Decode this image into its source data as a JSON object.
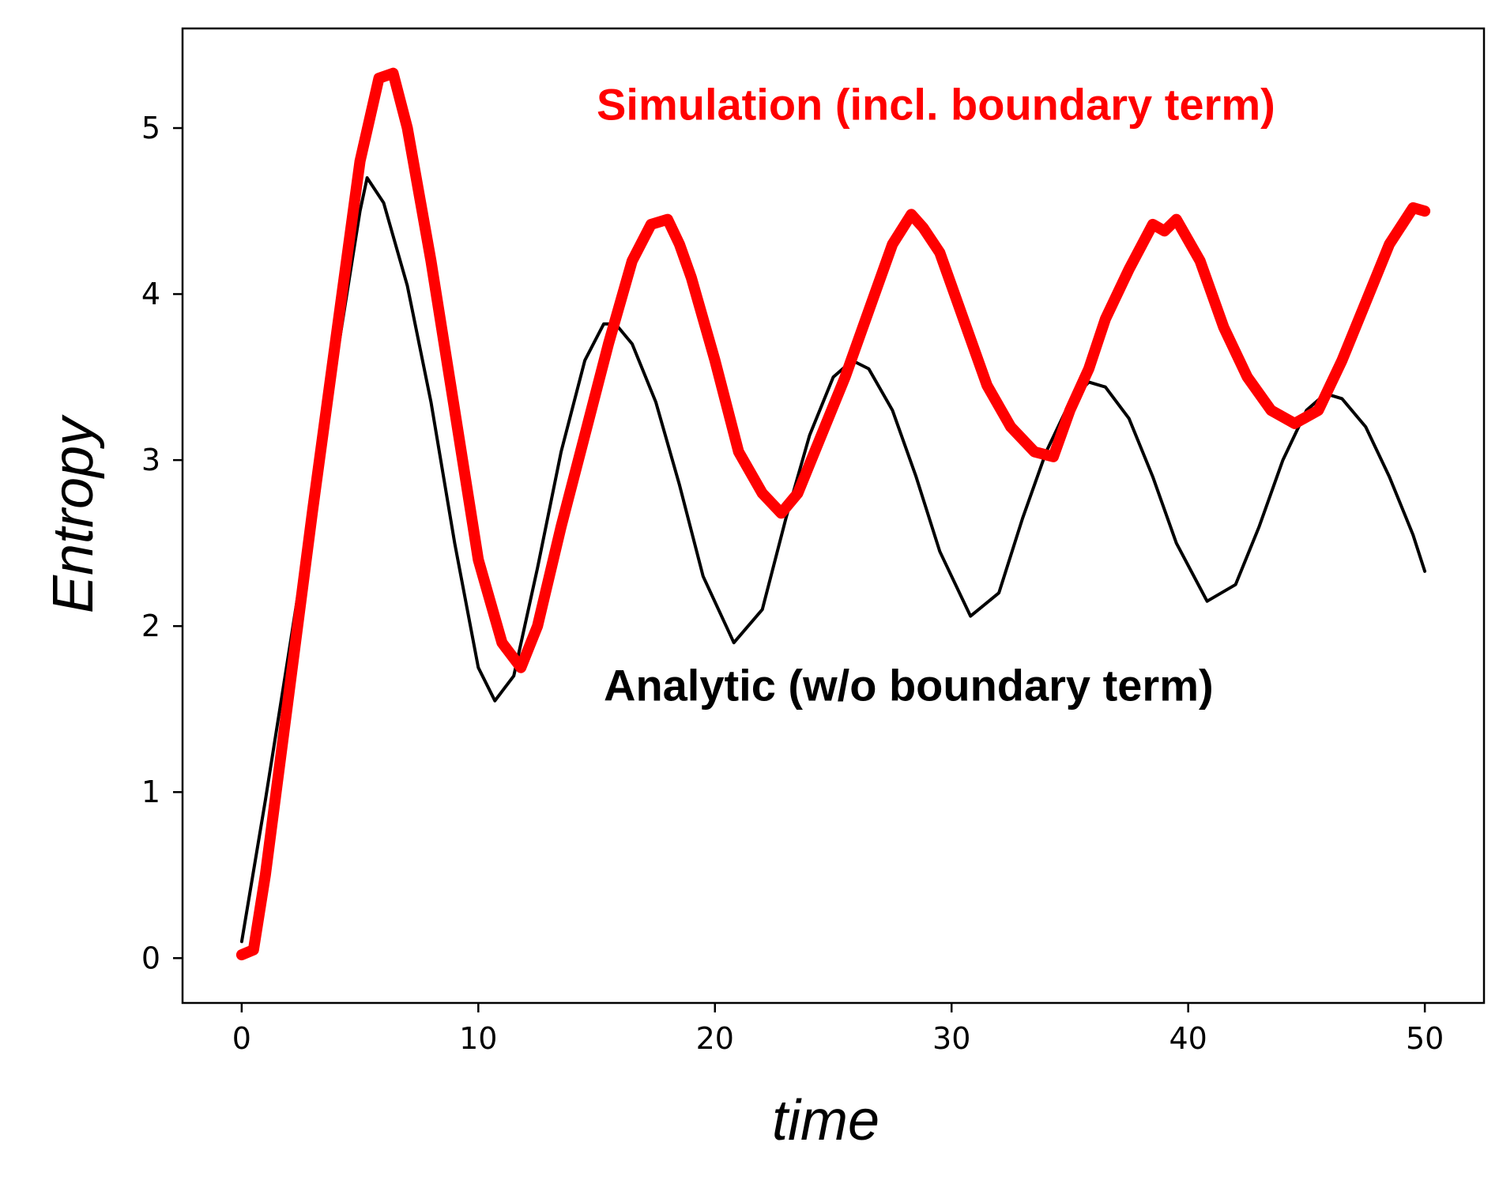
{
  "chart_data": {
    "type": "line",
    "xlabel": "time",
    "ylabel": "Entropy",
    "xlim": [
      -2.5,
      52.5
    ],
    "ylim": [
      -0.27,
      5.6
    ],
    "xticks": [
      0,
      10,
      20,
      30,
      40,
      50
    ],
    "yticks": [
      0,
      1,
      2,
      3,
      4,
      5
    ],
    "grid": false,
    "annotations": [
      {
        "text": "Simulation (incl. boundary term)",
        "color": "#ff0000",
        "x": 15,
        "y": 5.05,
        "series": "simulation"
      },
      {
        "text": "Analytic (w/o boundary term)",
        "color": "#000000",
        "x": 15.3,
        "y": 1.55,
        "series": "analytic"
      }
    ],
    "series": [
      {
        "id": "analytic",
        "color": "#000000",
        "x": [
          0,
          1,
          2,
          3,
          4,
          5,
          5.3,
          6,
          7,
          8,
          9,
          10,
          10.7,
          11.5,
          12.5,
          13.5,
          14.5,
          15.3,
          15.8,
          16.5,
          17.5,
          18.5,
          19.5,
          20.8,
          22,
          23,
          24,
          25,
          25.8,
          26.5,
          27.5,
          28.5,
          29.5,
          30.8,
          32,
          33,
          34,
          35,
          35.8,
          36.5,
          37.5,
          38.5,
          39.5,
          40.8,
          42,
          43,
          44,
          45,
          45.8,
          46.5,
          47.5,
          48.5,
          49.5,
          50
        ],
        "y": [
          0.1,
          0.95,
          1.85,
          2.75,
          3.6,
          4.5,
          4.7,
          4.55,
          4.05,
          3.35,
          2.5,
          1.75,
          1.55,
          1.7,
          2.35,
          3.05,
          3.6,
          3.82,
          3.82,
          3.7,
          3.35,
          2.85,
          2.3,
          1.9,
          2.1,
          2.65,
          3.15,
          3.5,
          3.6,
          3.55,
          3.3,
          2.9,
          2.45,
          2.06,
          2.2,
          2.65,
          3.05,
          3.35,
          3.47,
          3.44,
          3.25,
          2.9,
          2.5,
          2.15,
          2.25,
          2.6,
          3.0,
          3.3,
          3.4,
          3.37,
          3.2,
          2.9,
          2.55,
          2.33
        ]
      },
      {
        "id": "simulation",
        "color": "#ff0000",
        "x": [
          0,
          0.5,
          1,
          2,
          3,
          4,
          5,
          5.8,
          6.4,
          7,
          8,
          9,
          10,
          11,
          11.8,
          12.5,
          13.5,
          14.5,
          15.5,
          16.5,
          17.3,
          18,
          18.5,
          19,
          20,
          21,
          22,
          22.8,
          23.5,
          24.5,
          25.5,
          26.5,
          27.5,
          28.3,
          28.8,
          29.5,
          30.5,
          31.5,
          32.5,
          33.5,
          34.3,
          35,
          35.8,
          36.5,
          37.5,
          38.5,
          39,
          39.5,
          40.5,
          41.5,
          42.5,
          43.5,
          44.5,
          45.5,
          46.5,
          47.5,
          48.5,
          49.5,
          50
        ],
        "y": [
          0.02,
          0.05,
          0.5,
          1.6,
          2.7,
          3.75,
          4.8,
          5.3,
          5.33,
          5.0,
          4.2,
          3.3,
          2.4,
          1.9,
          1.75,
          2.0,
          2.6,
          3.15,
          3.7,
          4.2,
          4.42,
          4.45,
          4.3,
          4.1,
          3.6,
          3.05,
          2.8,
          2.68,
          2.8,
          3.15,
          3.5,
          3.9,
          4.3,
          4.48,
          4.4,
          4.25,
          3.85,
          3.45,
          3.2,
          3.05,
          3.02,
          3.3,
          3.55,
          3.85,
          4.15,
          4.42,
          4.38,
          4.45,
          4.2,
          3.8,
          3.5,
          3.3,
          3.22,
          3.3,
          3.6,
          3.95,
          4.3,
          4.52,
          4.5
        ]
      }
    ]
  }
}
